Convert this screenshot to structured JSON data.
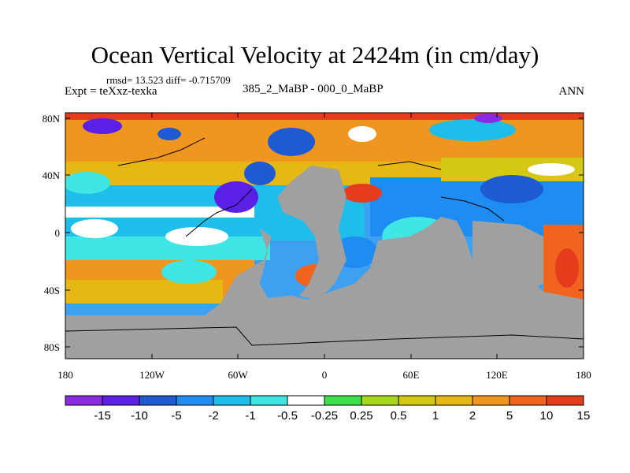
{
  "title": "Ocean Vertical Velocity at 2424m (in cm/day)",
  "stats_line": "rmsd= 13.523 diff= -0.715709",
  "experiment_label": "Expt = teXxz-texka",
  "difference_label": "385_2_MaBP - 000_0_MaBP",
  "season_label": "ANN",
  "map": {
    "land_color": "#a0a0a0",
    "y_ticks": [
      "80N",
      "40N",
      "0",
      "40S",
      "80S"
    ],
    "x_ticks": [
      "180",
      "120W",
      "60W",
      "0",
      "60E",
      "120E",
      "180"
    ]
  },
  "colorbar": {
    "colors": [
      "#8a2be2",
      "#5a20e6",
      "#1e5ad2",
      "#1e8cf0",
      "#1ebeeb",
      "#3ee6e6",
      "#ffffff",
      "#3ee04a",
      "#a8d81e",
      "#d4c814",
      "#e6b814",
      "#f0961e",
      "#f0641e",
      "#e63c1e"
    ],
    "labels": [
      "-15",
      "-10",
      "-5",
      "-2",
      "-1",
      "-0.5",
      "-0.25",
      "0.25",
      "0.5",
      "1",
      "2",
      "5",
      "10",
      "15"
    ]
  }
}
